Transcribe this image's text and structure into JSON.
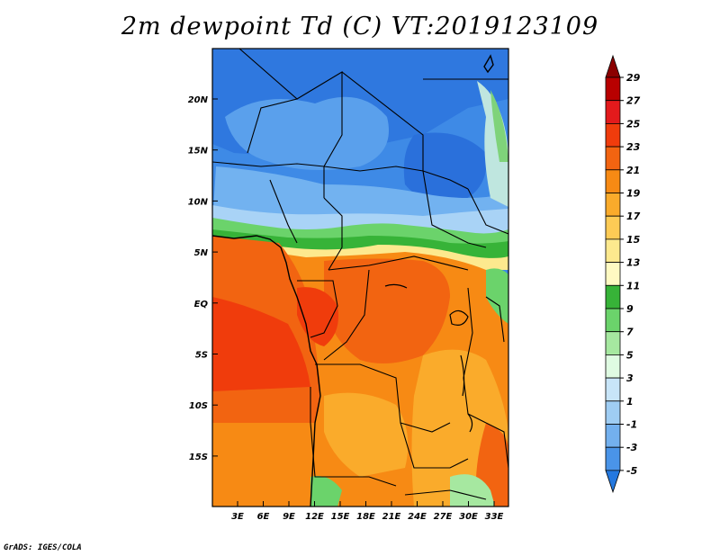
{
  "title": "2m dewpoint Td (C) VT:2019123109",
  "credit": "GrADS: IGES/COLA",
  "lat_labels": [
    "20N",
    "15N",
    "10N",
    "5N",
    "EQ",
    "5S",
    "10S",
    "15S"
  ],
  "lon_labels": [
    "3E",
    "6E",
    "9E",
    "12E",
    "15E",
    "18E",
    "21E",
    "24E",
    "27E",
    "30E",
    "33E"
  ],
  "colorbar": {
    "labels": [
      "29",
      "27",
      "25",
      "23",
      "21",
      "19",
      "17",
      "15",
      "13",
      "11",
      "9",
      "7",
      "5",
      "3",
      "1",
      "-1",
      "-3",
      "-5"
    ],
    "colors": [
      "#8b0000",
      "#b80000",
      "#e31a1c",
      "#f03c0c",
      "#f26411",
      "#f78a14",
      "#faab2b",
      "#fdcb55",
      "#fde98e",
      "#fffac2",
      "#37b338",
      "#6bd36b",
      "#a6e8a0",
      "#dffbe2",
      "#c8e5f8",
      "#9fcdf3",
      "#73b0ee",
      "#4a94e8",
      "#2478df"
    ]
  }
}
